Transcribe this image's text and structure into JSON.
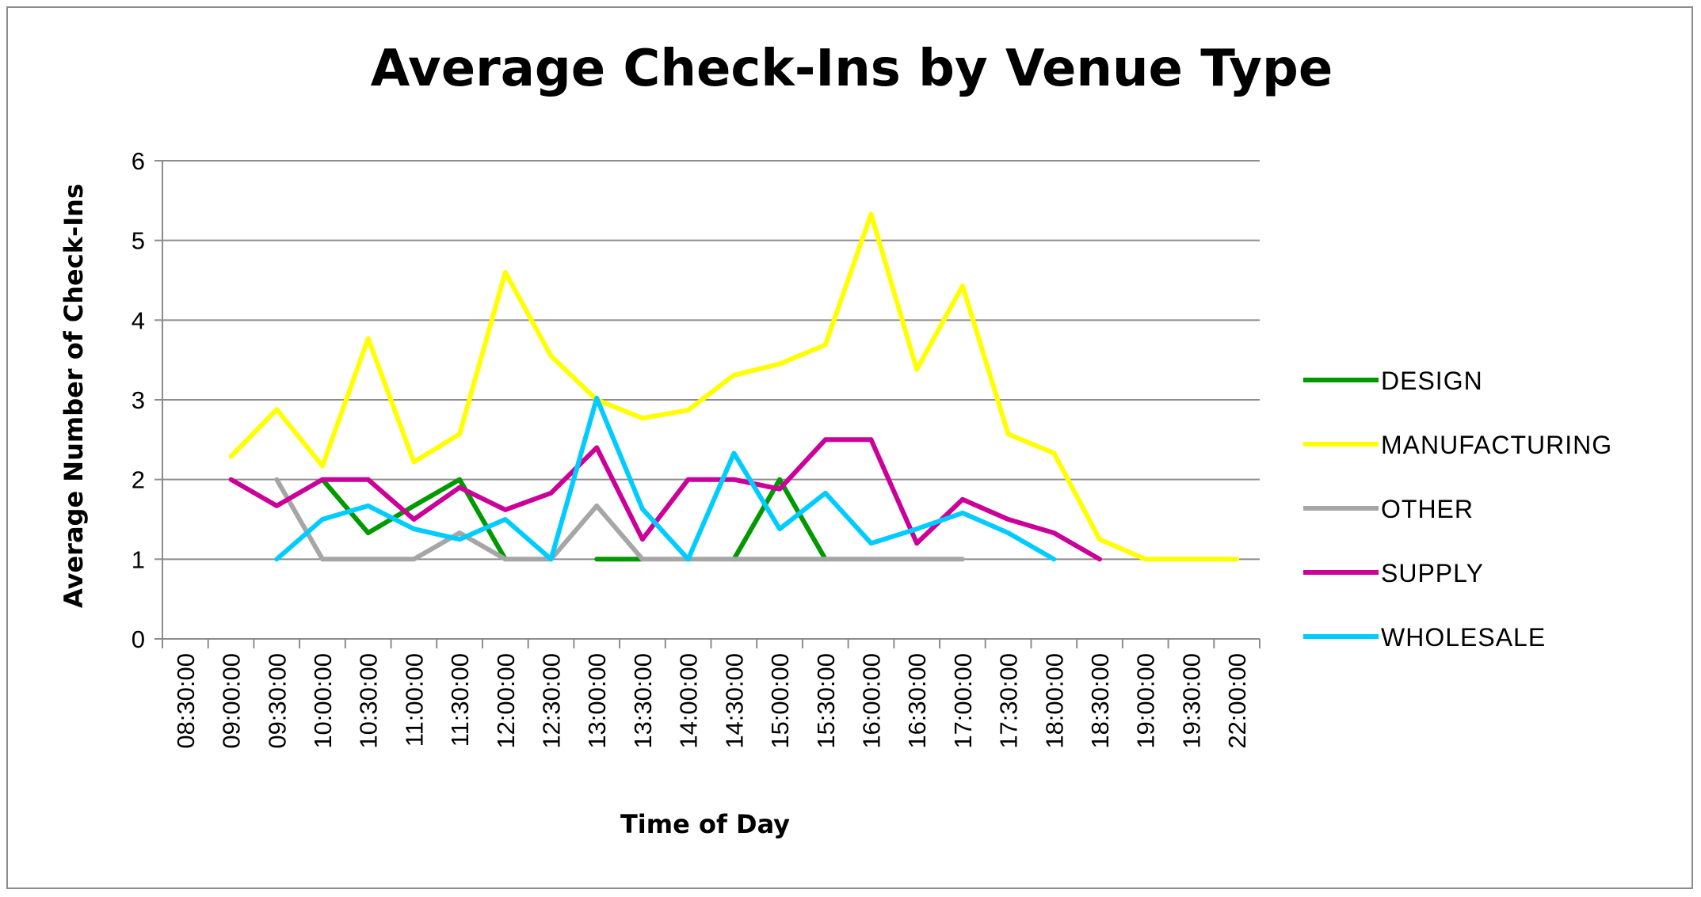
{
  "chart_data": {
    "type": "line",
    "title": "Average Check-Ins by Venue Type",
    "xlabel": "Time of Day",
    "ylabel": "Average Number of Check-Ins",
    "ylim": [
      0,
      6
    ],
    "yticks": [
      "0",
      "1",
      "2",
      "3",
      "4",
      "5",
      "6"
    ],
    "grid": "horizontal",
    "legend": "right",
    "categories": [
      "08:30:00",
      "09:00:00",
      "09:30:00",
      "10:00:00",
      "10:30:00",
      "11:00:00",
      "11:30:00",
      "12:00:00",
      "12:30:00",
      "13:00:00",
      "13:30:00",
      "14:00:00",
      "14:30:00",
      "15:00:00",
      "15:30:00",
      "16:00:00",
      "16:30:00",
      "17:00:00",
      "17:30:00",
      "18:00:00",
      "18:30:00",
      "19:00:00",
      "19:30:00",
      "22:00:00"
    ],
    "series": [
      {
        "name": "DESIGN",
        "color": "#009900",
        "values": [
          null,
          null,
          null,
          2,
          1.33,
          1.67,
          2,
          1,
          null,
          1,
          1,
          null,
          1,
          2,
          1,
          null,
          null,
          null,
          null,
          null,
          null,
          null,
          null,
          null
        ]
      },
      {
        "name": "MANUFACTURING",
        "color": "#ffff00",
        "values": [
          null,
          2.29,
          2.88,
          2.17,
          3.77,
          2.22,
          2.57,
          4.6,
          3.55,
          3,
          2.77,
          2.87,
          3.31,
          3.45,
          3.69,
          5.33,
          3.38,
          4.43,
          2.57,
          2.33,
          1.25,
          1,
          1,
          1
        ]
      },
      {
        "name": "OTHER",
        "color": "#a6a6a6",
        "values": [
          null,
          null,
          2,
          1,
          1,
          1,
          1.33,
          1,
          1,
          1.67,
          1,
          1,
          1,
          1,
          1,
          1,
          1,
          1,
          null,
          null,
          null,
          null,
          null,
          null
        ]
      },
      {
        "name": "SUPPLY",
        "color": "#cc0099",
        "values": [
          null,
          2,
          1.67,
          2,
          2,
          1.5,
          1.9,
          1.62,
          1.83,
          2.4,
          1.25,
          2,
          2,
          1.88,
          2.5,
          2.5,
          1.2,
          1.75,
          1.5,
          1.33,
          1,
          null,
          null,
          null
        ]
      },
      {
        "name": "WHOLESALE",
        "color": "#00ccff",
        "values": [
          null,
          null,
          1,
          1.5,
          1.67,
          1.38,
          1.25,
          1.5,
          1,
          3.02,
          1.63,
          1,
          2.33,
          1.38,
          1.83,
          1.2,
          1.38,
          1.58,
          1.33,
          1,
          null,
          null,
          null,
          null
        ]
      }
    ]
  }
}
